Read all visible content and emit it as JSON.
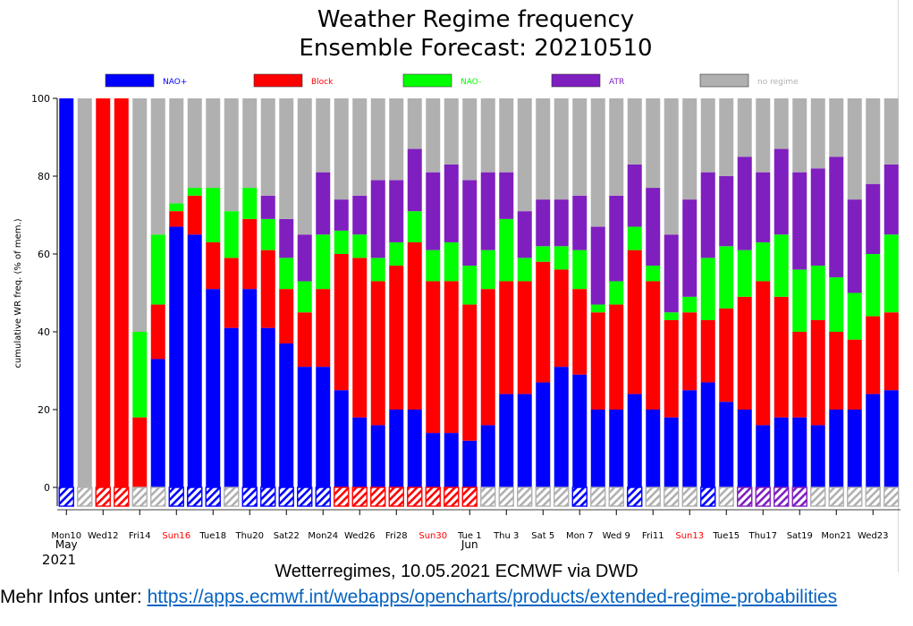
{
  "chart_data": {
    "type": "bar",
    "stacked": true,
    "title": "Weather Regime frequency",
    "subtitle": "Ensemble Forecast: 20210510",
    "ylabel": "cumulative WR freq. (% of mem.)",
    "ylim": [
      0,
      100
    ],
    "yticks": [
      0,
      20,
      40,
      60,
      80,
      100
    ],
    "grid": false,
    "legend_position": "top",
    "legend": [
      {
        "name": "NAO+",
        "color": "#0000ff"
      },
      {
        "name": "Block",
        "color": "#ff0000"
      },
      {
        "name": "NAO-",
        "color": "#00ff00"
      },
      {
        "name": "ATR",
        "color": "#7f1fbf"
      },
      {
        "name": "no regime",
        "color": "#b0b0b0"
      }
    ],
    "x_tick_labels": [
      {
        "index": 0,
        "label": "Mon10",
        "color": "#000000"
      },
      {
        "index": 2,
        "label": "Wed12",
        "color": "#000000"
      },
      {
        "index": 4,
        "label": "Fri14",
        "color": "#000000"
      },
      {
        "index": 6,
        "label": "Sun16",
        "color": "#ff0000"
      },
      {
        "index": 8,
        "label": "Tue18",
        "color": "#000000"
      },
      {
        "index": 10,
        "label": "Thu20",
        "color": "#000000"
      },
      {
        "index": 12,
        "label": "Sat22",
        "color": "#000000"
      },
      {
        "index": 14,
        "label": "Mon24",
        "color": "#000000"
      },
      {
        "index": 16,
        "label": "Wed26",
        "color": "#000000"
      },
      {
        "index": 18,
        "label": "Fri28",
        "color": "#000000"
      },
      {
        "index": 20,
        "label": "Sun30",
        "color": "#ff0000"
      },
      {
        "index": 22,
        "label": "Tue 1",
        "color": "#000000"
      },
      {
        "index": 24,
        "label": "Thu 3",
        "color": "#000000"
      },
      {
        "index": 26,
        "label": "Sat 5",
        "color": "#000000"
      },
      {
        "index": 28,
        "label": "Mon 7",
        "color": "#000000"
      },
      {
        "index": 30,
        "label": "Wed 9",
        "color": "#000000"
      },
      {
        "index": 32,
        "label": "Fri11",
        "color": "#000000"
      },
      {
        "index": 34,
        "label": "Sun13",
        "color": "#ff0000"
      },
      {
        "index": 36,
        "label": "Tue15",
        "color": "#000000"
      },
      {
        "index": 38,
        "label": "Thu17",
        "color": "#000000"
      },
      {
        "index": 40,
        "label": "Sat19",
        "color": "#000000"
      },
      {
        "index": 42,
        "label": "Mon21",
        "color": "#000000"
      },
      {
        "index": 44,
        "label": "Wed23",
        "color": "#000000"
      }
    ],
    "month_labels": [
      {
        "index": 0,
        "label": "May"
      },
      {
        "index": 22,
        "label": "Jun"
      }
    ],
    "year_label": "2021",
    "bars": [
      {
        "index": 0,
        "NAO+": 100,
        "Block": 0,
        "NAO-": 0,
        "ATR": 0,
        "no regime": 0,
        "dominant": "NAO+"
      },
      {
        "index": 1,
        "NAO+": 0,
        "Block": 0,
        "NAO-": 0,
        "ATR": 0,
        "no regime": 100,
        "dominant": "no regime"
      },
      {
        "index": 2,
        "NAO+": 0,
        "Block": 100,
        "NAO-": 0,
        "ATR": 0,
        "no regime": 0,
        "dominant": "Block"
      },
      {
        "index": 3,
        "NAO+": 0,
        "Block": 100,
        "NAO-": 0,
        "ATR": 0,
        "no regime": 0,
        "dominant": "Block"
      },
      {
        "index": 4,
        "NAO+": 0,
        "Block": 18,
        "NAO-": 22,
        "ATR": 0,
        "no regime": 60,
        "dominant": "no regime"
      },
      {
        "index": 5,
        "NAO+": 33,
        "Block": 14,
        "NAO-": 18,
        "ATR": 0,
        "no regime": 35,
        "dominant": "no regime"
      },
      {
        "index": 6,
        "NAO+": 67,
        "Block": 4,
        "NAO-": 2,
        "ATR": 0,
        "no regime": 27,
        "dominant": "NAO+"
      },
      {
        "index": 7,
        "NAO+": 65,
        "Block": 10,
        "NAO-": 2,
        "ATR": 0,
        "no regime": 23,
        "dominant": "NAO+"
      },
      {
        "index": 8,
        "NAO+": 51,
        "Block": 12,
        "NAO-": 14,
        "ATR": 0,
        "no regime": 23,
        "dominant": "NAO+"
      },
      {
        "index": 9,
        "NAO+": 41,
        "Block": 18,
        "NAO-": 12,
        "ATR": 0,
        "no regime": 29,
        "dominant": "no regime"
      },
      {
        "index": 10,
        "NAO+": 51,
        "Block": 18,
        "NAO-": 8,
        "ATR": 0,
        "no regime": 23,
        "dominant": "NAO+"
      },
      {
        "index": 11,
        "NAO+": 41,
        "Block": 20,
        "NAO-": 8,
        "ATR": 6,
        "no regime": 25,
        "dominant": "NAO+"
      },
      {
        "index": 12,
        "NAO+": 37,
        "Block": 14,
        "NAO-": 8,
        "ATR": 10,
        "no regime": 31,
        "dominant": "NAO+"
      },
      {
        "index": 13,
        "NAO+": 31,
        "Block": 14,
        "NAO-": 8,
        "ATR": 12,
        "no regime": 35,
        "dominant": "NAO+"
      },
      {
        "index": 14,
        "NAO+": 31,
        "Block": 20,
        "NAO-": 14,
        "ATR": 16,
        "no regime": 19,
        "dominant": "NAO+"
      },
      {
        "index": 15,
        "NAO+": 25,
        "Block": 35,
        "NAO-": 6,
        "ATR": 8,
        "no regime": 26,
        "dominant": "Block"
      },
      {
        "index": 16,
        "NAO+": 18,
        "Block": 41,
        "NAO-": 6,
        "ATR": 10,
        "no regime": 25,
        "dominant": "Block"
      },
      {
        "index": 17,
        "NAO+": 16,
        "Block": 37,
        "NAO-": 6,
        "ATR": 20,
        "no regime": 21,
        "dominant": "Block"
      },
      {
        "index": 18,
        "NAO+": 20,
        "Block": 37,
        "NAO-": 6,
        "ATR": 16,
        "no regime": 21,
        "dominant": "Block"
      },
      {
        "index": 19,
        "NAO+": 20,
        "Block": 43,
        "NAO-": 8,
        "ATR": 16,
        "no regime": 13,
        "dominant": "Block"
      },
      {
        "index": 20,
        "NAO+": 14,
        "Block": 39,
        "NAO-": 8,
        "ATR": 20,
        "no regime": 19,
        "dominant": "Block"
      },
      {
        "index": 21,
        "NAO+": 14,
        "Block": 39,
        "NAO-": 10,
        "ATR": 20,
        "no regime": 17,
        "dominant": "Block"
      },
      {
        "index": 22,
        "NAO+": 12,
        "Block": 35,
        "NAO-": 10,
        "ATR": 22,
        "no regime": 21,
        "dominant": "Block"
      },
      {
        "index": 23,
        "NAO+": 16,
        "Block": 35,
        "NAO-": 10,
        "ATR": 20,
        "no regime": 19,
        "dominant": "no regime"
      },
      {
        "index": 24,
        "NAO+": 24,
        "Block": 29,
        "NAO-": 16,
        "ATR": 12,
        "no regime": 19,
        "dominant": "no regime"
      },
      {
        "index": 25,
        "NAO+": 24,
        "Block": 29,
        "NAO-": 6,
        "ATR": 12,
        "no regime": 29,
        "dominant": "no regime"
      },
      {
        "index": 26,
        "NAO+": 27,
        "Block": 31,
        "NAO-": 4,
        "ATR": 12,
        "no regime": 26,
        "dominant": "no regime"
      },
      {
        "index": 27,
        "NAO+": 31,
        "Block": 25,
        "NAO-": 6,
        "ATR": 12,
        "no regime": 26,
        "dominant": "no regime"
      },
      {
        "index": 28,
        "NAO+": 29,
        "Block": 22,
        "NAO-": 10,
        "ATR": 14,
        "no regime": 25,
        "dominant": "NAO+"
      },
      {
        "index": 29,
        "NAO+": 20,
        "Block": 25,
        "NAO-": 2,
        "ATR": 20,
        "no regime": 33,
        "dominant": "no regime"
      },
      {
        "index": 30,
        "NAO+": 20,
        "Block": 27,
        "NAO-": 6,
        "ATR": 22,
        "no regime": 25,
        "dominant": "no regime"
      },
      {
        "index": 31,
        "NAO+": 24,
        "Block": 37,
        "NAO-": 6,
        "ATR": 16,
        "no regime": 17,
        "dominant": "NAO+"
      },
      {
        "index": 32,
        "NAO+": 20,
        "Block": 33,
        "NAO-": 4,
        "ATR": 20,
        "no regime": 23,
        "dominant": "no regime"
      },
      {
        "index": 33,
        "NAO+": 18,
        "Block": 25,
        "NAO-": 2,
        "ATR": 20,
        "no regime": 35,
        "dominant": "no regime"
      },
      {
        "index": 34,
        "NAO+": 25,
        "Block": 20,
        "NAO-": 4,
        "ATR": 25,
        "no regime": 26,
        "dominant": "no regime"
      },
      {
        "index": 35,
        "NAO+": 27,
        "Block": 16,
        "NAO-": 16,
        "ATR": 22,
        "no regime": 19,
        "dominant": "NAO+"
      },
      {
        "index": 36,
        "NAO+": 22,
        "Block": 24,
        "NAO-": 16,
        "ATR": 18,
        "no regime": 20,
        "dominant": "no regime"
      },
      {
        "index": 37,
        "NAO+": 20,
        "Block": 29,
        "NAO-": 12,
        "ATR": 24,
        "no regime": 15,
        "dominant": "ATR"
      },
      {
        "index": 38,
        "NAO+": 16,
        "Block": 37,
        "NAO-": 10,
        "ATR": 18,
        "no regime": 19,
        "dominant": "ATR"
      },
      {
        "index": 39,
        "NAO+": 18,
        "Block": 31,
        "NAO-": 16,
        "ATR": 22,
        "no regime": 13,
        "dominant": "ATR"
      },
      {
        "index": 40,
        "NAO+": 18,
        "Block": 22,
        "NAO-": 16,
        "ATR": 25,
        "no regime": 19,
        "dominant": "ATR"
      },
      {
        "index": 41,
        "NAO+": 16,
        "Block": 27,
        "NAO-": 14,
        "ATR": 25,
        "no regime": 18,
        "dominant": "no regime"
      },
      {
        "index": 42,
        "NAO+": 20,
        "Block": 20,
        "NAO-": 14,
        "ATR": 31,
        "no regime": 15,
        "dominant": "no regime"
      },
      {
        "index": 43,
        "NAO+": 20,
        "Block": 18,
        "NAO-": 12,
        "ATR": 24,
        "no regime": 26,
        "dominant": "no regime"
      },
      {
        "index": 44,
        "NAO+": 24,
        "Block": 20,
        "NAO-": 16,
        "ATR": 18,
        "no regime": 22,
        "dominant": "no regime"
      },
      {
        "index": 45,
        "NAO+": 25,
        "Block": 20,
        "NAO-": 20,
        "ATR": 18,
        "no regime": 17,
        "dominant": "no regime"
      }
    ]
  },
  "caption": "Wetterregimes, 10.05.2021 ECMWF via DWD",
  "info": {
    "prefix": "Mehr Infos unter: ",
    "link_text": "https://apps.ecmwf.int/webapps/opencharts/products/extended-regime-probabilities"
  }
}
